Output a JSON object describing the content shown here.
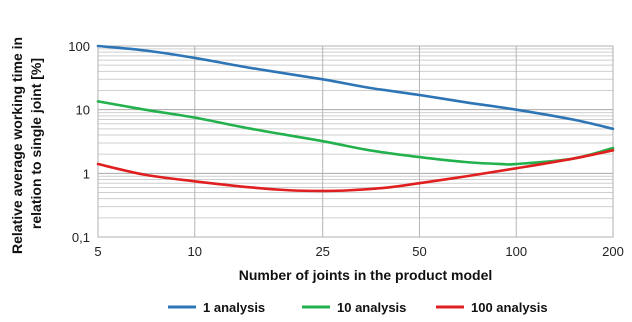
{
  "chart_data": {
    "type": "line",
    "title": "",
    "xlabel": "Number of joints in the product model",
    "ylabel": "Relative average working time in relation to single joint [%]",
    "ylabel_lines": [
      "Relative average working time in",
      "relation to single joint [%]"
    ],
    "xscale": "log",
    "yscale": "log",
    "x_ticks": [
      5,
      10,
      25,
      50,
      100,
      200
    ],
    "x_tick_labels": [
      "5",
      "10",
      "25",
      "50",
      "100",
      "200"
    ],
    "y_ticks": [
      0.1,
      1,
      10,
      100
    ],
    "y_tick_labels": [
      "0,1",
      "1",
      "10",
      "100"
    ],
    "xlim": [
      5,
      200
    ],
    "ylim": [
      0.1,
      100
    ],
    "grid": true,
    "legend_position": "bottom",
    "series": [
      {
        "name": "1 analysis",
        "color": "#2e75b6",
        "x": [
          5,
          7,
          10,
          15,
          25,
          35,
          50,
          70,
          100,
          150,
          200
        ],
        "y": [
          100,
          85,
          65,
          45,
          30,
          22,
          17,
          13,
          10,
          7,
          5
        ]
      },
      {
        "name": "10 analysis",
        "color": "#22b14c",
        "x": [
          5,
          7,
          10,
          15,
          25,
          35,
          50,
          70,
          90,
          100,
          150,
          200
        ],
        "y": [
          13.5,
          10,
          7.5,
          5,
          3.2,
          2.3,
          1.8,
          1.5,
          1.4,
          1.4,
          1.7,
          2.5
        ]
      },
      {
        "name": "100 analysis",
        "color": "#e02020",
        "x": [
          5,
          7,
          10,
          15,
          20,
          25,
          30,
          40,
          50,
          70,
          100,
          150,
          200
        ],
        "y": [
          1.4,
          0.95,
          0.75,
          0.6,
          0.54,
          0.53,
          0.54,
          0.6,
          0.7,
          0.9,
          1.2,
          1.7,
          2.3
        ]
      }
    ]
  }
}
